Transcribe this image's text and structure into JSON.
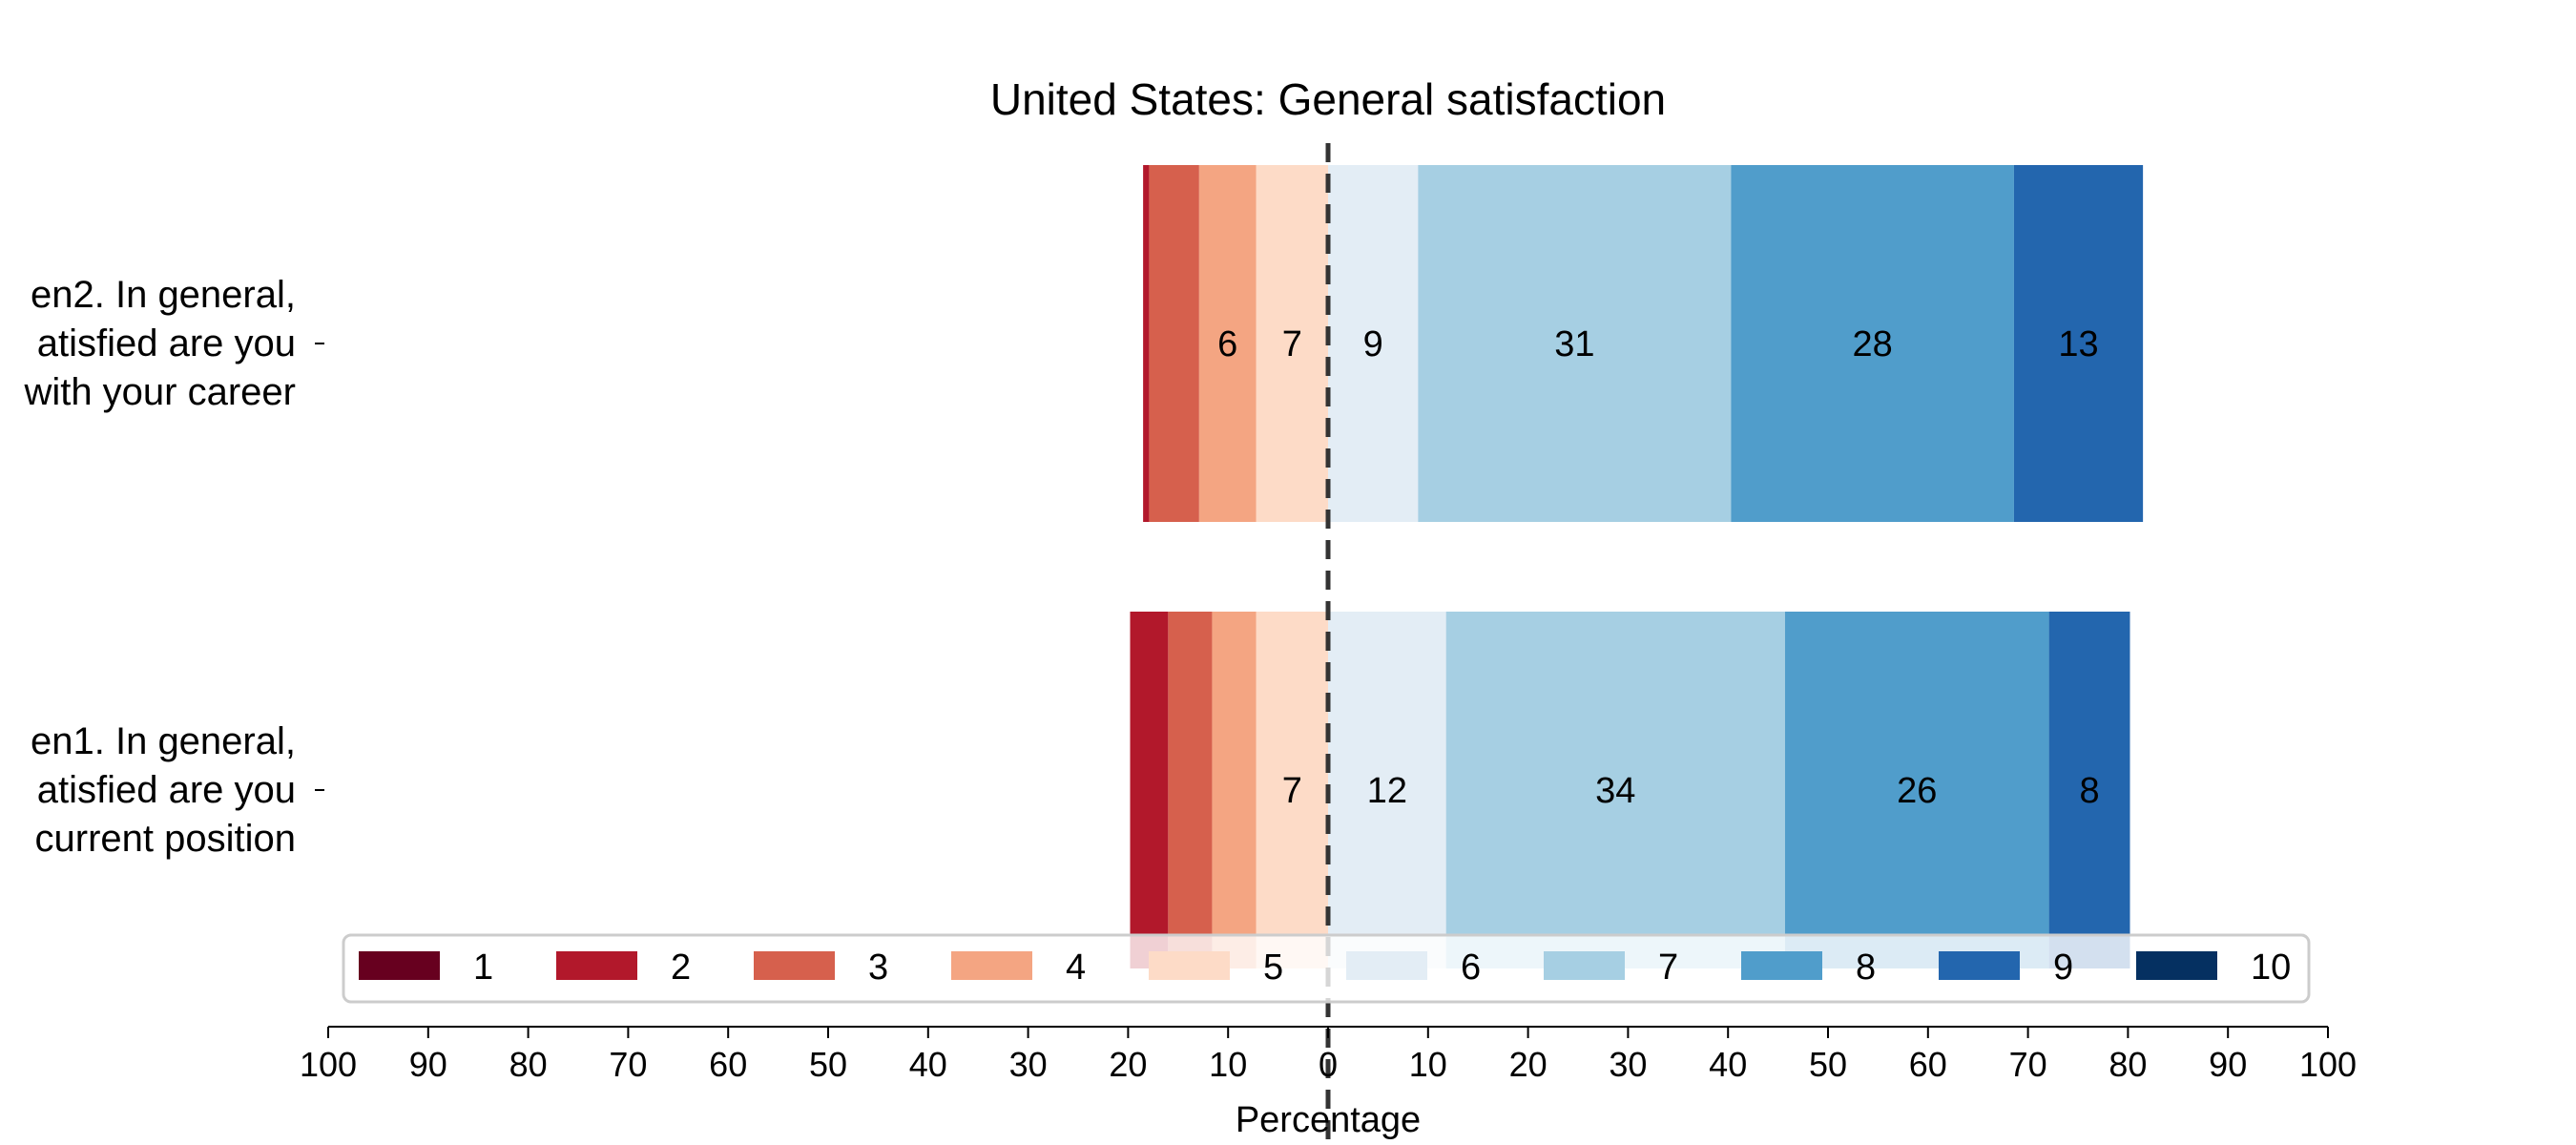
{
  "chart_data": {
    "type": "bar",
    "orientation": "horizontal",
    "stacked": "diverging",
    "title": "United States: General satisfaction",
    "xlabel": "Percentage",
    "ylabel": "",
    "xlim": [
      -100,
      100
    ],
    "x_ticks": [
      -100,
      -90,
      -80,
      -70,
      -60,
      -50,
      -40,
      -30,
      -20,
      -10,
      0,
      10,
      20,
      30,
      40,
      50,
      60,
      70,
      80,
      90,
      100
    ],
    "x_tick_labels": [
      "100",
      "90",
      "80",
      "70",
      "60",
      "50",
      "40",
      "30",
      "20",
      "10",
      "0",
      "10",
      "20",
      "30",
      "40",
      "50",
      "60",
      "70",
      "80",
      "90",
      "100"
    ],
    "center_line": "dashed at 0",
    "grid": false,
    "legend_placement": "bottom-center, single row",
    "categories": [
      [
        "en2. In general,",
        "atisfied are you",
        "with your career"
      ],
      [
        "en1. In general,",
        "atisfied are you",
        "current position"
      ]
    ],
    "series": [
      {
        "name": "1",
        "color": "#67001f",
        "values": [
          0,
          0
        ]
      },
      {
        "name": "2",
        "color": "#b2182b",
        "values": [
          0.6,
          3.8
        ]
      },
      {
        "name": "3",
        "color": "#d6604d",
        "values": [
          5,
          4.4
        ]
      },
      {
        "name": "4",
        "color": "#f4a582",
        "values": [
          5.7,
          4.4
        ]
      },
      {
        "name": "5",
        "color": "#fddbc7",
        "values": [
          7.2,
          7.2
        ]
      },
      {
        "name": "6",
        "color": "#e3edf5",
        "values": [
          9,
          11.8
        ]
      },
      {
        "name": "7",
        "color": "#a6cfe3",
        "values": [
          31.3,
          33.9
        ]
      },
      {
        "name": "8",
        "color": "#509dcb",
        "values": [
          28.3,
          26.4
        ]
      },
      {
        "name": "9",
        "color": "#2366ae",
        "values": [
          12.9,
          8.1
        ]
      },
      {
        "name": "10",
        "color": "#053061",
        "values": [
          0,
          0
        ]
      }
    ],
    "data_labels": [
      [
        null,
        null,
        null,
        "6",
        "7",
        "9",
        "31",
        "28",
        "13",
        null
      ],
      [
        null,
        null,
        null,
        null,
        "7",
        "12",
        "34",
        "26",
        "8",
        null
      ]
    ]
  }
}
